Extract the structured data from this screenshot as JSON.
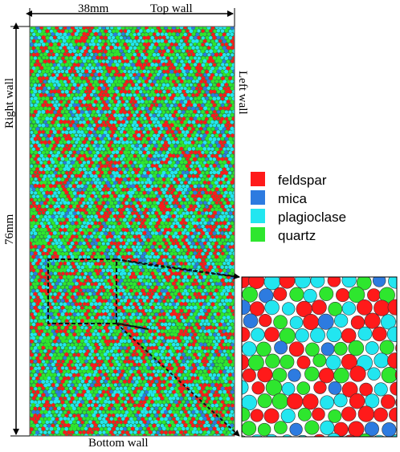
{
  "labels": {
    "width": "38mm",
    "height": "76mm",
    "top_wall": "Top wall",
    "bottom_wall": "Bottom wall",
    "left_wall": "Left wall",
    "right_wall": "Right wall"
  },
  "legend": [
    {
      "label": "feldspar",
      "color": "#ff1a1a"
    },
    {
      "label": "mica",
      "color": "#2d7be0"
    },
    {
      "label": "plagioclase",
      "color": "#22e6f0"
    },
    {
      "label": "quartz",
      "color": "#2ee62e"
    }
  ],
  "mineral_colors": {
    "feldspar": "#ff1a1a",
    "mica": "#2d7be0",
    "plagioclase": "#22e6f0",
    "quartz": "#2ee62e"
  },
  "mineral_fractions": {
    "feldspar": 0.27,
    "mica": 0.08,
    "plagioclase": 0.32,
    "quartz": 0.33
  }
}
